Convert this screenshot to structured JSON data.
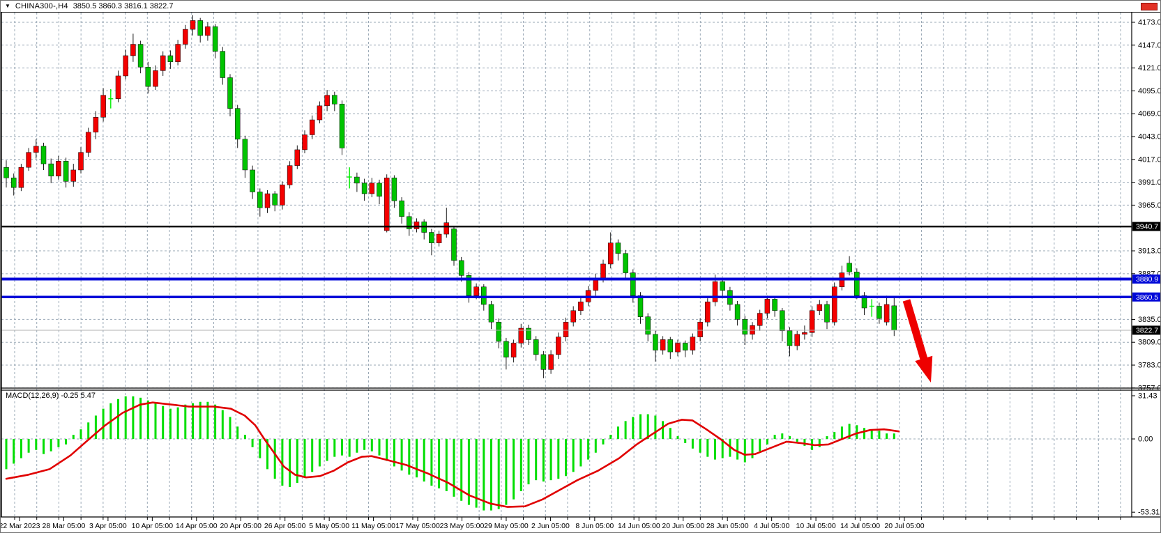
{
  "header": {
    "dropdown_icon": "▼",
    "symbol": "CHINA300-,H4",
    "ohlc": "3850.5 3860.3 3816.1 3822.7"
  },
  "colors": {
    "bull": "#f40000",
    "bear": "#00c400",
    "doji": "#00ee00",
    "wick": "#1c1c1c",
    "grid": "#9aa8b6",
    "hline_blue": "#0008d8",
    "hline_black": "#000000",
    "price_line": "#b0b0b0",
    "macd_hist": "#00de00",
    "macd_signal": "#e00000",
    "arrow": "#ee0000",
    "badge_dark": "#000000",
    "axis_text": "#000000",
    "marker_red": "#e23125"
  },
  "chart_data": {
    "type": "candlestick",
    "symbol": "CHINA300-",
    "timeframe": "H4",
    "last_ohlc": {
      "open": 3850.5,
      "high": 3860.3,
      "low": 3816.1,
      "close": 3822.7
    },
    "price_ticks": [
      4173.0,
      4147.0,
      4121.0,
      4095.0,
      4069.0,
      4043.0,
      4017.0,
      3991.0,
      3965.0,
      3913.0,
      3887.0,
      3835.0,
      3809.0,
      3783.0,
      3757.0
    ],
    "price_badges": [
      {
        "price": 3940.7,
        "bg": "#000000"
      },
      {
        "price": 3880.9,
        "bg": "#0008d8"
      },
      {
        "price": 3860.5,
        "bg": "#0008d8"
      },
      {
        "price": 3822.7,
        "bg": "#000000"
      }
    ],
    "hlines": [
      {
        "price": 3940.7,
        "color": "#000000",
        "width": 2.5
      },
      {
        "price": 3880.9,
        "color": "#0008d8",
        "width": 4
      },
      {
        "price": 3860.5,
        "color": "#0008d8",
        "width": 3.5
      },
      {
        "price": 3822.7,
        "color": "#b0b0b0",
        "width": 1
      }
    ],
    "candles": [
      [
        4008,
        4016,
        3985,
        3996
      ],
      [
        3996,
        4001,
        3976,
        3985
      ],
      [
        3985,
        4012,
        3981,
        4008
      ],
      [
        4008,
        4030,
        4004,
        4025
      ],
      [
        4025,
        4040,
        4018,
        4032
      ],
      [
        4032,
        4036,
        4005,
        4012
      ],
      [
        4012,
        4018,
        3990,
        3998
      ],
      [
        3998,
        4021,
        3994,
        4015
      ],
      [
        4015,
        4019,
        3985,
        3992
      ],
      [
        3992,
        4012,
        3986,
        4005
      ],
      [
        4005,
        4031,
        4001,
        4025
      ],
      [
        4025,
        4053,
        4020,
        4048
      ],
      [
        4048,
        4072,
        4040,
        4065
      ],
      [
        4065,
        4098,
        4060,
        4090
      ],
      [
        4087,
        4097,
        4075,
        4086
      ],
      [
        4086,
        4118,
        4082,
        4112
      ],
      [
        4112,
        4142,
        4108,
        4135
      ],
      [
        4135,
        4160,
        4128,
        4148
      ],
      [
        4148,
        4152,
        4115,
        4122
      ],
      [
        4122,
        4128,
        4092,
        4100
      ],
      [
        4100,
        4124,
        4096,
        4118
      ],
      [
        4118,
        4140,
        4112,
        4135
      ],
      [
        4135,
        4141,
        4120,
        4128
      ],
      [
        4128,
        4153,
        4124,
        4148
      ],
      [
        4148,
        4170,
        4143,
        4165
      ],
      [
        4165,
        4181,
        4158,
        4175
      ],
      [
        4175,
        4178,
        4150,
        4158
      ],
      [
        4158,
        4173,
        4152,
        4168
      ],
      [
        4168,
        4171,
        4132,
        4140
      ],
      [
        4140,
        4145,
        4102,
        4110
      ],
      [
        4110,
        4114,
        4066,
        4075
      ],
      [
        4075,
        4079,
        4030,
        4040
      ],
      [
        4040,
        4044,
        3996,
        4005
      ],
      [
        4005,
        4010,
        3972,
        3980
      ],
      [
        3980,
        3984,
        3952,
        3962
      ],
      [
        3962,
        3982,
        3956,
        3978
      ],
      [
        3978,
        3981,
        3958,
        3965
      ],
      [
        3965,
        3992,
        3960,
        3988
      ],
      [
        3988,
        4015,
        3984,
        4010
      ],
      [
        4010,
        4033,
        4006,
        4028
      ],
      [
        4028,
        4050,
        4024,
        4045
      ],
      [
        4045,
        4067,
        4040,
        4062
      ],
      [
        4062,
        4083,
        4058,
        4078
      ],
      [
        4078,
        4096,
        4072,
        4090
      ],
      [
        4090,
        4094,
        4072,
        4080
      ],
      [
        4080,
        4084,
        4022,
        4030
      ],
      [
        3998,
        4008,
        3984,
        3997
      ],
      [
        3997,
        4002,
        3980,
        3990
      ],
      [
        3990,
        3995,
        3970,
        3978
      ],
      [
        3978,
        3996,
        3974,
        3990
      ],
      [
        3990,
        3994,
        3966,
        3975
      ],
      [
        3936,
        4000,
        3934,
        3996
      ],
      [
        3996,
        3999,
        3962,
        3970
      ],
      [
        3970,
        3974,
        3944,
        3952
      ],
      [
        3952,
        3957,
        3930,
        3938
      ],
      [
        3938,
        3950,
        3934,
        3946
      ],
      [
        3946,
        3949,
        3926,
        3934
      ],
      [
        3934,
        3938,
        3908,
        3922
      ],
      [
        3922,
        3936,
        3918,
        3932
      ],
      [
        3932,
        3962,
        3928,
        3945
      ],
      [
        3938,
        3941,
        3896,
        3902
      ],
      [
        3902,
        3906,
        3878,
        3885
      ],
      [
        3885,
        3889,
        3854,
        3862
      ],
      [
        3862,
        3876,
        3858,
        3872
      ],
      [
        3872,
        3875,
        3845,
        3852
      ],
      [
        3852,
        3856,
        3824,
        3832
      ],
      [
        3832,
        3836,
        3802,
        3810
      ],
      [
        3810,
        3814,
        3778,
        3792
      ],
      [
        3792,
        3812,
        3786,
        3808
      ],
      [
        3808,
        3830,
        3803,
        3825
      ],
      [
        3825,
        3829,
        3806,
        3812
      ],
      [
        3812,
        3816,
        3788,
        3795
      ],
      [
        3795,
        3799,
        3768,
        3778
      ],
      [
        3778,
        3800,
        3773,
        3795
      ],
      [
        3795,
        3820,
        3790,
        3815
      ],
      [
        3815,
        3837,
        3810,
        3832
      ],
      [
        3832,
        3850,
        3827,
        3845
      ],
      [
        3845,
        3860,
        3840,
        3855
      ],
      [
        3855,
        3873,
        3850,
        3868
      ],
      [
        3868,
        3887,
        3862,
        3882
      ],
      [
        3882,
        3903,
        3877,
        3898
      ],
      [
        3898,
        3934,
        3893,
        3922
      ],
      [
        3922,
        3926,
        3902,
        3910
      ],
      [
        3910,
        3914,
        3880,
        3888
      ],
      [
        3888,
        3892,
        3854,
        3862
      ],
      [
        3862,
        3866,
        3830,
        3838
      ],
      [
        3838,
        3842,
        3810,
        3818
      ],
      [
        3818,
        3822,
        3787,
        3800
      ],
      [
        3800,
        3816,
        3795,
        3812
      ],
      [
        3812,
        3815,
        3790,
        3798
      ],
      [
        3798,
        3812,
        3793,
        3808
      ],
      [
        3808,
        3811,
        3792,
        3800
      ],
      [
        3800,
        3819,
        3795,
        3815
      ],
      [
        3815,
        3836,
        3810,
        3832
      ],
      [
        3832,
        3859,
        3827,
        3855
      ],
      [
        3855,
        3886,
        3850,
        3878
      ],
      [
        3878,
        3882,
        3860,
        3868
      ],
      [
        3868,
        3872,
        3845,
        3852
      ],
      [
        3852,
        3856,
        3828,
        3835
      ],
      [
        3835,
        3839,
        3806,
        3818
      ],
      [
        3818,
        3832,
        3812,
        3828
      ],
      [
        3828,
        3846,
        3822,
        3842
      ],
      [
        3842,
        3862,
        3836,
        3858
      ],
      [
        3858,
        3861,
        3838,
        3845
      ],
      [
        3845,
        3848,
        3810,
        3822
      ],
      [
        3822,
        3826,
        3793,
        3805
      ],
      [
        3805,
        3822,
        3800,
        3818
      ],
      [
        3818,
        3828,
        3812,
        3820
      ],
      [
        3820,
        3850,
        3815,
        3845
      ],
      [
        3845,
        3857,
        3840,
        3852
      ],
      [
        3852,
        3856,
        3824,
        3832
      ],
      [
        3832,
        3877,
        3828,
        3872
      ],
      [
        3872,
        3896,
        3868,
        3888
      ],
      [
        3899,
        3907,
        3885,
        3889
      ],
      [
        3889,
        3893,
        3858,
        3862
      ],
      [
        3862,
        3866,
        3840,
        3848
      ],
      [
        3849,
        3858,
        3838,
        3850
      ],
      [
        3850,
        3854,
        3830,
        3836
      ],
      [
        3832,
        3862,
        3828,
        3852
      ],
      [
        3850.5,
        3860.3,
        3816.1,
        3822.7
      ]
    ],
    "time_labels": [
      "22 Mar 2023",
      "28 Mar 05:00",
      "3 Apr 05:00",
      "10 Apr 05:00",
      "14 Apr 05:00",
      "20 Apr 05:00",
      "26 Apr 05:00",
      "5 May 05:00",
      "11 May 05:00",
      "17 May 05:00",
      "23 May 05:00",
      "29 May 05:00",
      "2 Jun 05:00",
      "8 Jun 05:00",
      "14 Jun 05:00",
      "20 Jun 05:00",
      "28 Jun 05:00",
      "4 Jul 05:00",
      "10 Jul 05:00",
      "14 Jul 05:00",
      "20 Jul 05:00"
    ],
    "macd": {
      "label": "MACD(12,26,9) -0.25 5.47",
      "params": "12,26,9",
      "macd_value": -0.25,
      "signal_value": 5.47,
      "scale": [
        "31.43",
        "0.00",
        "-53.31"
      ],
      "histogram": [
        -22,
        -18,
        -14,
        -10,
        -8,
        -11,
        -9,
        -6,
        -4,
        3,
        7,
        12,
        17,
        22,
        26,
        29,
        31,
        31,
        30,
        28,
        26,
        24,
        22,
        23,
        25,
        26,
        27,
        27,
        25,
        21,
        16,
        9,
        3,
        -6,
        -14,
        -22,
        -29,
        -34,
        -35,
        -32,
        -28,
        -24,
        -20,
        -16,
        -13,
        -12,
        -13,
        -10,
        -8,
        -9,
        -12,
        -16,
        -20,
        -23,
        -26,
        -28,
        -31,
        -34,
        -36,
        -38,
        -42,
        -45,
        -48,
        -50,
        -52,
        -52,
        -51,
        -48,
        -44,
        -38,
        -33,
        -30,
        -31,
        -30,
        -29,
        -27,
        -24,
        -20,
        -15,
        -10,
        -4,
        3,
        9,
        13,
        16,
        18,
        18,
        17,
        13,
        8,
        2,
        -3,
        -7,
        -10,
        -13,
        -15,
        -14,
        -13,
        -15,
        -17,
        -14,
        -9,
        -4,
        3,
        4,
        2,
        -2,
        -5,
        -8,
        -6,
        2,
        5,
        9,
        11,
        10,
        8,
        7,
        6,
        4,
        4
      ],
      "signal": [
        [
          8,
          -29
        ],
        [
          40,
          -26
        ],
        [
          70,
          -22
        ],
        [
          100,
          -12
        ],
        [
          127,
          0
        ],
        [
          150,
          10
        ],
        [
          175,
          19
        ],
        [
          200,
          25
        ],
        [
          218,
          26.5
        ],
        [
          245,
          25
        ],
        [
          270,
          23.5
        ],
        [
          305,
          23.5
        ],
        [
          330,
          22
        ],
        [
          350,
          17
        ],
        [
          365,
          10
        ],
        [
          378,
          0
        ],
        [
          392,
          -10
        ],
        [
          406,
          -20
        ],
        [
          422,
          -26
        ],
        [
          438,
          -28
        ],
        [
          458,
          -27
        ],
        [
          478,
          -23
        ],
        [
          498,
          -17
        ],
        [
          518,
          -13
        ],
        [
          532,
          -12.5
        ],
        [
          552,
          -15
        ],
        [
          582,
          -19
        ],
        [
          612,
          -25
        ],
        [
          642,
          -32
        ],
        [
          672,
          -41
        ],
        [
          702,
          -47
        ],
        [
          727,
          -49.5
        ],
        [
          752,
          -49
        ],
        [
          777,
          -44
        ],
        [
          802,
          -37
        ],
        [
          827,
          -30
        ],
        [
          857,
          -23
        ],
        [
          887,
          -14
        ],
        [
          912,
          -4
        ],
        [
          927,
          1
        ],
        [
          942,
          6
        ],
        [
          957,
          11
        ],
        [
          977,
          14
        ],
        [
          992,
          13.5
        ],
        [
          1012,
          7
        ],
        [
          1032,
          0
        ],
        [
          1052,
          -8
        ],
        [
          1067,
          -11.5
        ],
        [
          1082,
          -11
        ],
        [
          1102,
          -7
        ],
        [
          1127,
          -2
        ],
        [
          1147,
          -3
        ],
        [
          1167,
          -4.5
        ],
        [
          1187,
          -4
        ],
        [
          1207,
          0
        ],
        [
          1227,
          4
        ],
        [
          1247,
          6.5
        ],
        [
          1267,
          7
        ],
        [
          1288,
          5.5
        ]
      ]
    },
    "arrow": {
      "from": [
        1299,
        430
      ],
      "tip": [
        1334,
        548
      ]
    }
  }
}
